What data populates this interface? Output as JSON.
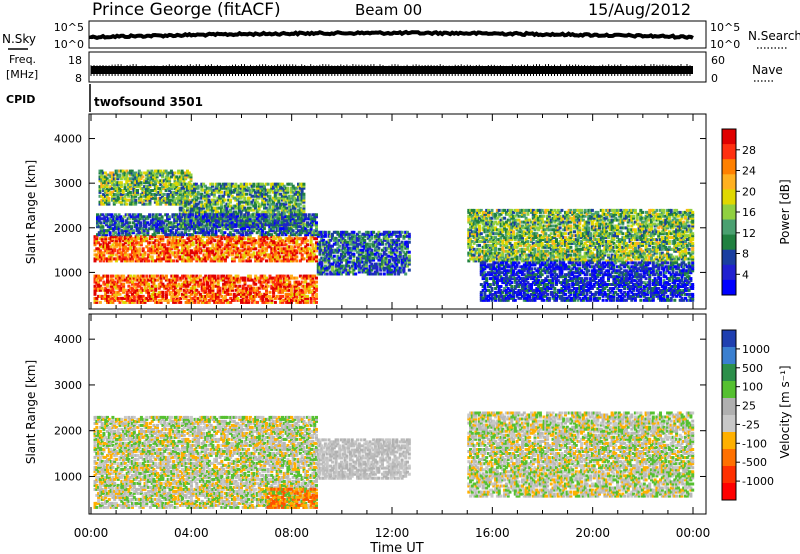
{
  "header": {
    "station": "Prince George (fitACF)",
    "beam": "Beam 00",
    "date": "15/Aug/2012"
  },
  "top_panels": {
    "nsky_label": "N.Sky",
    "nsky_ticks": [
      "10^5",
      "10^0"
    ],
    "nsearch_label": "N.Search",
    "nsearch_ticks": [
      "10^5",
      "10^0"
    ],
    "freq_label_1": "Freq.",
    "freq_label_2": "[MHz]",
    "freq_ticks": [
      "18",
      "8"
    ],
    "nave_label": "Nave",
    "nave_ticks": [
      "60",
      "0"
    ],
    "cpid_label": "CPID",
    "cpid_value": "twofsound 3501"
  },
  "chart_data": [
    {
      "type": "heatmap",
      "name": "power",
      "ylabel": "Slant Range [km]",
      "xlabel": "",
      "ylim": [
        180,
        4550
      ],
      "yticks": [
        1000,
        2000,
        3000,
        4000
      ],
      "xlim_hours": [
        0,
        24
      ],
      "xticks": [
        "00:00",
        "04:00",
        "08:00",
        "12:00",
        "16:00",
        "20:00",
        "00:00"
      ],
      "colorbar": {
        "label": "Power [dB]",
        "ticks": [
          "28",
          "24",
          "20",
          "16",
          "12",
          "8",
          "4"
        ],
        "colors": [
          "#e00000",
          "#ff3010",
          "#ff8000",
          "#ffb020",
          "#e0d800",
          "#90d040",
          "#4aa070",
          "#208040",
          "#1a3fa0",
          "#2020d0",
          "#0000ff"
        ]
      },
      "regions": [
        {
          "t0": 0.1,
          "t1": 9.0,
          "r0": 250,
          "r1": 900,
          "level": 0.82
        },
        {
          "t0": 0.1,
          "t1": 9.0,
          "r0": 1200,
          "r1": 1800,
          "level": 0.8
        },
        {
          "t0": 0.3,
          "t1": 4.0,
          "r0": 2500,
          "r1": 3300,
          "level": 0.45
        },
        {
          "t0": 3.5,
          "t1": 8.5,
          "r0": 2000,
          "r1": 3000,
          "level": 0.4
        },
        {
          "t0": 0.2,
          "t1": 9.0,
          "r0": 1800,
          "r1": 2300,
          "level": 0.25
        },
        {
          "t0": 9.0,
          "t1": 12.7,
          "r0": 900,
          "r1": 1900,
          "level": 0.25
        },
        {
          "t0": 15.0,
          "t1": 24.0,
          "r0": 1200,
          "r1": 2400,
          "level": 0.45
        },
        {
          "t0": 15.5,
          "t1": 24.0,
          "r0": 300,
          "r1": 1200,
          "level": 0.15
        }
      ]
    },
    {
      "type": "heatmap",
      "name": "velocity",
      "ylabel": "Slant Range [km]",
      "xlabel": "Time UT",
      "ylim": [
        180,
        4550
      ],
      "yticks": [
        1000,
        2000,
        3000,
        4000
      ],
      "xlim_hours": [
        0,
        24
      ],
      "xticks": [
        "00:00",
        "04:00",
        "08:00",
        "12:00",
        "16:00",
        "20:00",
        "00:00"
      ],
      "colorbar": {
        "label": "Velocity [m s⁻¹]",
        "ticks": [
          "1000",
          "500",
          "100",
          "25",
          "-25",
          "-100",
          "-500",
          "-1000"
        ],
        "colors": [
          "#1f3fb0",
          "#3a7fd0",
          "#2c8f4a",
          "#55c030",
          "#b0b0b0",
          "#c8c8c8",
          "#ffb000",
          "#ff7000",
          "#ff3000",
          "#ff0000"
        ]
      },
      "regions": [
        {
          "t0": 0.1,
          "t1": 9.0,
          "r0": 250,
          "r1": 2300,
          "level": 0.5
        },
        {
          "t0": 9.0,
          "t1": 12.7,
          "r0": 900,
          "r1": 1800,
          "level": 0.25
        },
        {
          "t0": 7.0,
          "t1": 9.0,
          "r0": 250,
          "r1": 700,
          "level": 0.8
        },
        {
          "t0": 15.0,
          "t1": 24.0,
          "r0": 500,
          "r1": 2400,
          "level": 0.5
        }
      ]
    }
  ]
}
